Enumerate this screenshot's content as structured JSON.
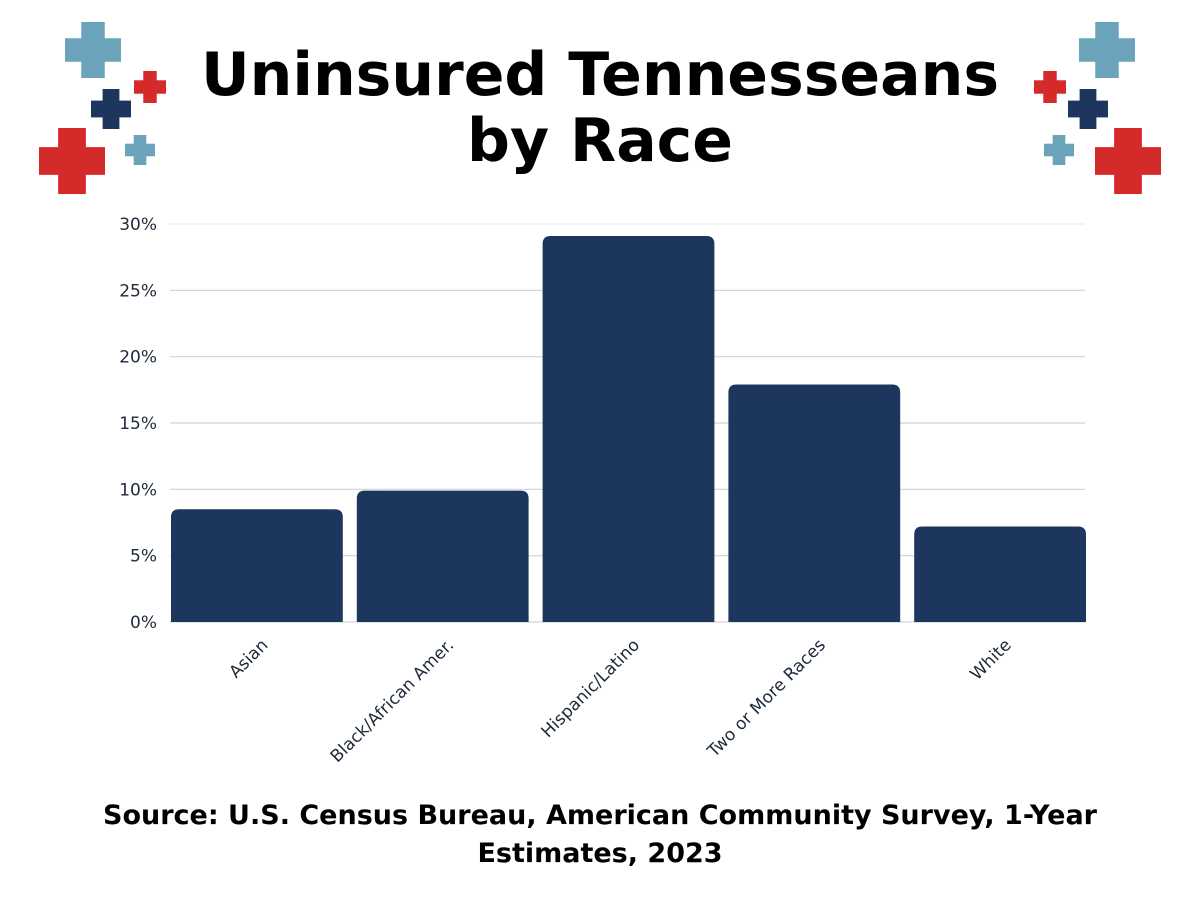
{
  "title_line1": "Uninsured Tennesseans",
  "title_line2": "by Race",
  "source": "Source: U.S. Census Bureau, American Community Survey, 1-Year Estimates, 2023",
  "colors": {
    "bar": "#1d365d",
    "red": "#d42a2a",
    "teal": "#6ba4ba",
    "navy": "#1d365d",
    "grid": "#d0d3d6",
    "tick_text": "#1d2a3a"
  },
  "icons": [
    "medical-cross-icon"
  ],
  "chart_data": {
    "type": "bar",
    "title": "Uninsured Tennesseans by Race",
    "categories": [
      "Asian",
      "Black/African Amer.",
      "Hispanic/Latino",
      "Two or More Races",
      "White"
    ],
    "values": [
      8.5,
      9.9,
      29.1,
      17.9,
      7.2
    ],
    "unit": "%",
    "ylim": [
      0,
      30
    ],
    "yticks": [
      "0%",
      "5%",
      "10%",
      "15%",
      "20%",
      "25%",
      "30%"
    ],
    "grid": true,
    "xlabel": "",
    "ylabel": ""
  }
}
